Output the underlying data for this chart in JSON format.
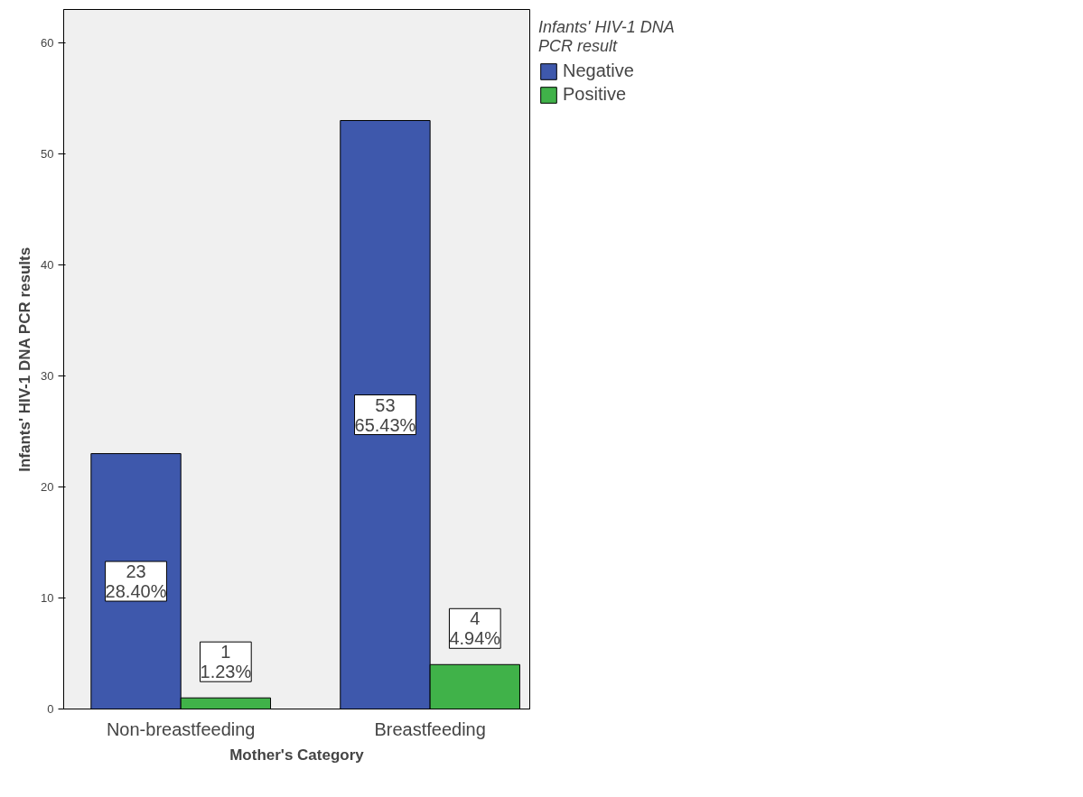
{
  "chart_data": {
    "type": "bar",
    "xlabel": "Mother's Category",
    "ylabel": "Infants' HIV-1 DNA PCR results",
    "legend_title": "Infants' HIV-1 DNA\nPCR result",
    "legend": "top right",
    "categories": [
      "Non-breastfeeding",
      "Breastfeeding"
    ],
    "series": [
      {
        "name": "Negative",
        "color": "#3e58ac",
        "values": [
          23,
          53
        ],
        "value_labels": [
          "23\n28.40%",
          "53\n65.43%"
        ]
      },
      {
        "name": "Positive",
        "color": "#40b249",
        "values": [
          1,
          4
        ],
        "value_labels": [
          "1\n1.23%",
          "4\n4.94%"
        ]
      }
    ],
    "ylim": [
      0,
      63
    ],
    "yticks": [
      0,
      10,
      20,
      30,
      40,
      50,
      60
    ],
    "grid": false
  }
}
